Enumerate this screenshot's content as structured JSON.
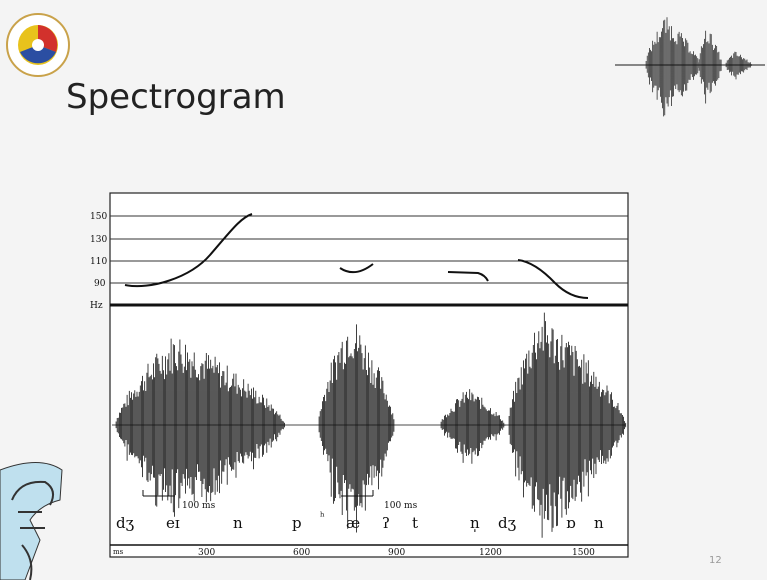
{
  "slide": {
    "title": "Spectrogram",
    "page_number": "12"
  },
  "figure": {
    "pitch_axis": {
      "unit": "Hz",
      "ticks": [
        "150",
        "130",
        "110",
        "90"
      ]
    },
    "scale_bars": [
      "100 ms",
      "100 ms"
    ],
    "phones": [
      "dʒ",
      "eɪ",
      "n",
      "p",
      "ʰ",
      "æ",
      "ʔ",
      "t",
      "n̩",
      "dʒ",
      "ɒ",
      "n"
    ],
    "time_axis": {
      "unit": "ms",
      "ticks": [
        "300",
        "600",
        "900",
        "1200",
        "1500"
      ]
    }
  }
}
